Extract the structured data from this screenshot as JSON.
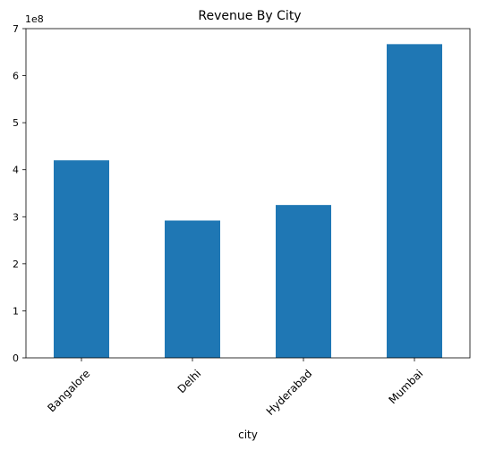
{
  "chart_data": {
    "type": "bar",
    "title": "Revenue By City",
    "xlabel": "city",
    "ylabel": "",
    "scale_label": "1e8",
    "scale_factor": 100000000,
    "categories": [
      "Bangalore",
      "Delhi",
      "Hyderabad",
      "Mumbai"
    ],
    "values": [
      420000000,
      292000000,
      325000000,
      667000000
    ],
    "ylim": [
      0,
      700000000
    ],
    "yticks": [
      0,
      100000000,
      200000000,
      300000000,
      400000000,
      500000000,
      600000000,
      700000000
    ],
    "ytick_labels": [
      "0",
      "1",
      "2",
      "3",
      "4",
      "5",
      "6",
      "7"
    ],
    "bar_color": "#1f77b4",
    "grid": false,
    "legend": "none"
  }
}
